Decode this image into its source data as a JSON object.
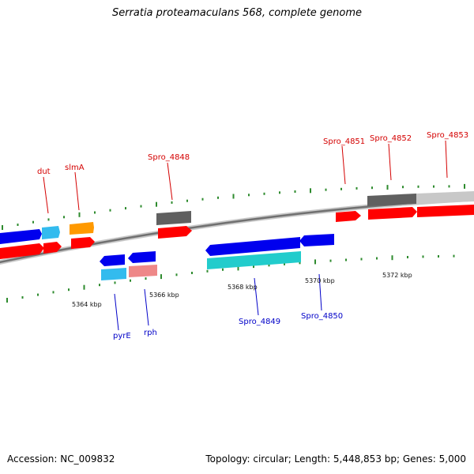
{
  "title": "Serratia proteamaculans 568, complete genome",
  "footer": {
    "accession": "Accession: NC_009832",
    "topology": "Topology: circular; Length: 5,448,853 bp; Genes: 5,000"
  },
  "colors": {
    "forward_label": "#d40000",
    "reverse_label": "#0000c8",
    "backbone": "#808080",
    "tick_mark": "#2e8b2e",
    "gene_red": "#ff0000",
    "gene_blue": "#0000ee",
    "gene_light_blue": "#33bbee",
    "gene_orange": "#ff9900",
    "gene_gray": "#606060",
    "gene_light_gray": "#c8c8c8",
    "gene_cyan": "#22cccc",
    "gene_pink": "#ee8888"
  },
  "scale_labels": [
    "5364 kbp",
    "5366 kbp",
    "5368 kbp",
    "5370 kbp",
    "5372 kbp"
  ],
  "forward_gene_labels": [
    "dut",
    "slmA",
    "Spro_4848",
    "Spro_4851",
    "Spro_4852",
    "Spro_4853"
  ],
  "reverse_gene_labels": [
    "pyrE",
    "rph",
    "Spro_4849",
    "Spro_4850"
  ]
}
